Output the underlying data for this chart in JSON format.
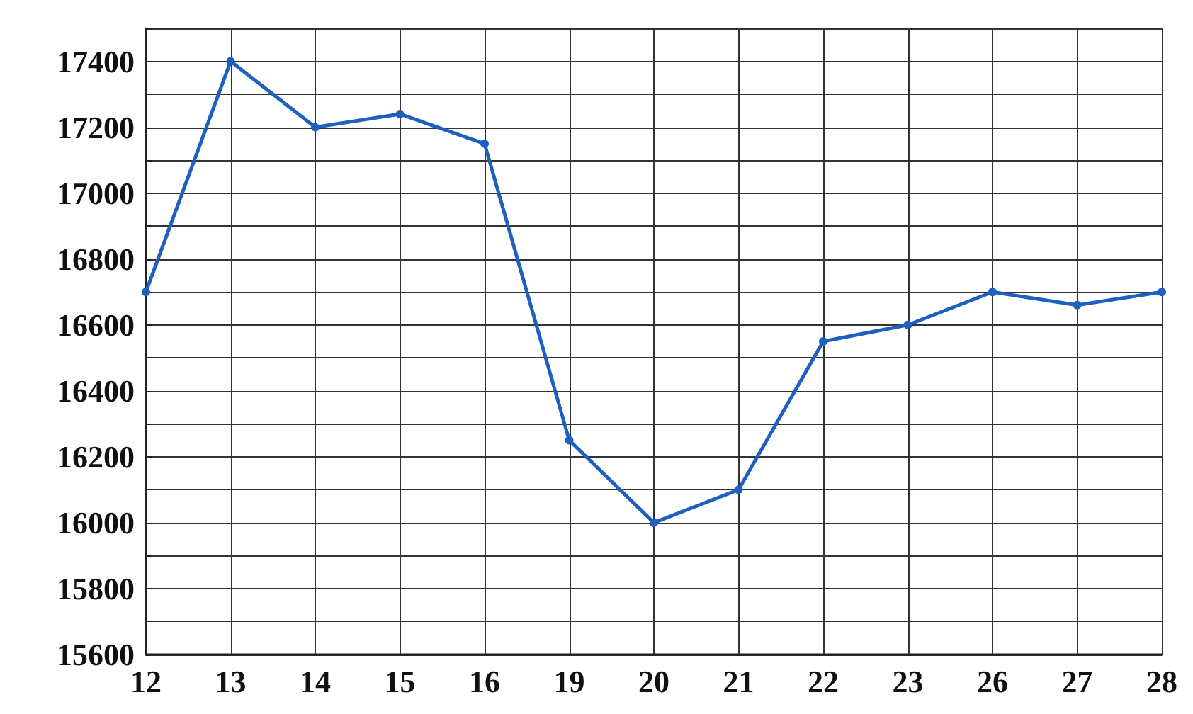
{
  "chart_data": {
    "type": "line",
    "categories": [
      "12",
      "13",
      "14",
      "15",
      "16",
      "19",
      "20",
      "21",
      "22",
      "23",
      "26",
      "27",
      "28"
    ],
    "series": [
      {
        "color": "#1f5fbf",
        "values": [
          16700,
          17400,
          17200,
          17240,
          17150,
          16250,
          16000,
          16100,
          16550,
          16600,
          16700,
          16660,
          16700
        ]
      }
    ],
    "ylim": [
      15600,
      17500
    ],
    "yticks": [
      15600,
      {
        "value": 15700,
        "label": null
      },
      15800,
      {
        "value": 15900,
        "label": null
      },
      16000,
      {
        "value": 16100,
        "label": null
      },
      16200,
      {
        "value": 16300,
        "label": null
      },
      16400,
      {
        "value": 16500,
        "label": null
      },
      16600,
      {
        "value": 16700,
        "label": null
      },
      16800,
      {
        "value": 16900,
        "label": null
      },
      17000,
      {
        "value": 17100,
        "label": null
      },
      17200,
      {
        "value": 17300,
        "label": null
      },
      17400,
      {
        "value": 17500,
        "label": null
      }
    ],
    "grid": true,
    "marker": "circle",
    "line_style": "solid"
  }
}
